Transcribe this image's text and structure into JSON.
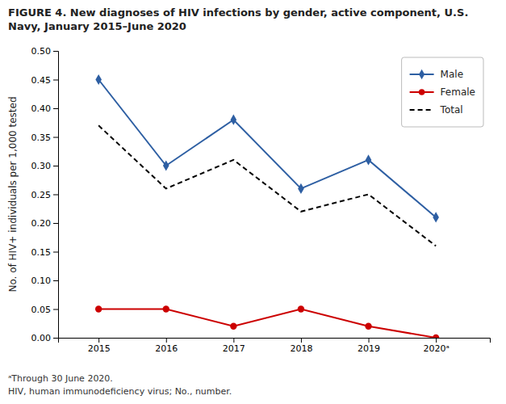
{
  "chart_data": {
    "type": "line",
    "title": "FIGURE 4. New diagnoses of HIV infections by gender, active component, U.S. Navy, January 2015–June 2020",
    "ylabel": "No. of HIV+ individuals per 1,000 tested",
    "annotations": [
      "ᵃThrough 30 June 2020.",
      "HIV, human immunodeficiency virus; No., number."
    ],
    "x": [
      2015,
      2016,
      2017,
      2018,
      2019,
      2020
    ],
    "series": [
      {
        "name": "Male",
        "color": "#2e5fa3",
        "marker": "diamond",
        "line_style": "solid",
        "values": [
          0.45,
          0.3,
          0.38,
          0.26,
          0.31,
          0.21
        ]
      },
      {
        "name": "Female",
        "color": "#cc0000",
        "marker": "circle",
        "line_style": "solid",
        "values": [
          0.05,
          0.05,
          0.02,
          0.05,
          0.02,
          0.0
        ]
      },
      {
        "name": "Total",
        "color": "#000000",
        "marker": "none",
        "line_style": "dashed",
        "values": [
          0.37,
          0.26,
          0.31,
          0.22,
          0.25,
          0.16
        ]
      }
    ],
    "xlim": [
      2014.4,
      2020.8
    ],
    "xticks": [
      2015,
      2016,
      2017,
      2018,
      2019,
      {
        "value": 2020,
        "label": "2020ᵃ"
      }
    ],
    "ylim": [
      0,
      0.5
    ],
    "yticks": [
      {
        "value": 0,
        "label": "0.00"
      },
      0.05,
      {
        "value": 0.1,
        "label": "0.10"
      },
      0.15,
      {
        "value": 0.2,
        "label": "0.20"
      },
      0.25,
      {
        "value": 0.3,
        "label": "0.30"
      },
      0.35,
      {
        "value": 0.4,
        "label": "0.40"
      },
      0.45,
      {
        "value": 0.5,
        "label": "0.50"
      }
    ],
    "grid": false,
    "legend": "upper right"
  }
}
